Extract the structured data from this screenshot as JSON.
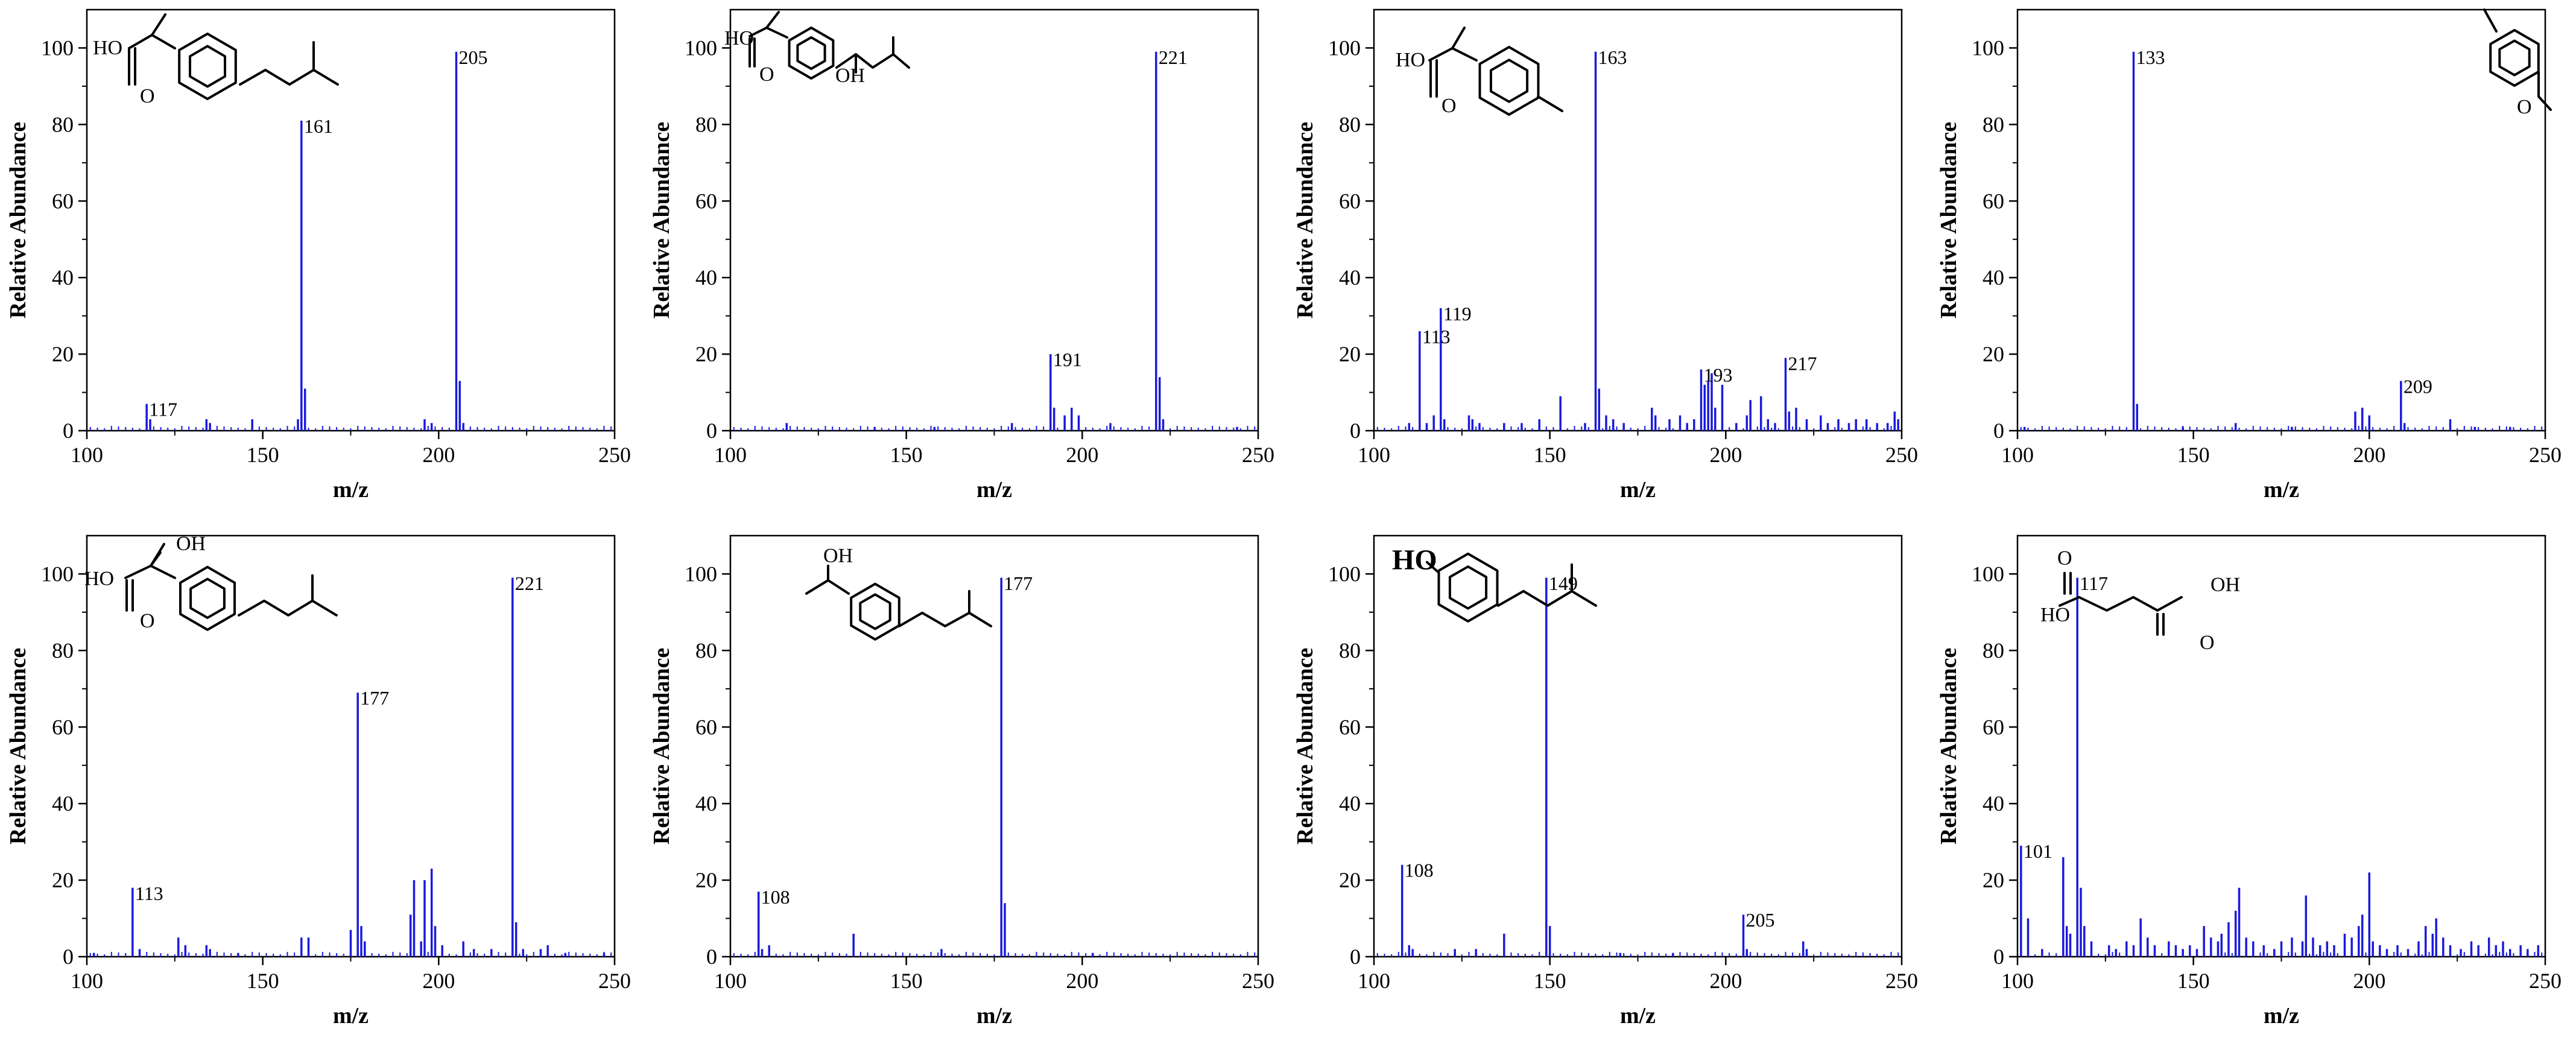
{
  "chart_data": [
    {
      "type": "bar",
      "xlabel": "m/z",
      "ylabel": "Relative Abundance",
      "xlim": [
        100,
        250
      ],
      "ylim": [
        0,
        110
      ],
      "x_ticks": [
        "100",
        "150",
        "200",
        "250"
      ],
      "y_ticks": [
        "0",
        "20",
        "40",
        "60",
        "80",
        "100"
      ],
      "color": "#1a1adc",
      "molecule": "ibuprofen",
      "molecule_texts": [
        "HO",
        "O"
      ],
      "peaks": [
        [
          117,
          7
        ],
        [
          118,
          3
        ],
        [
          134,
          3
        ],
        [
          135,
          2
        ],
        [
          147,
          3
        ],
        [
          160,
          3
        ],
        [
          161,
          81
        ],
        [
          162,
          11
        ],
        [
          196,
          3
        ],
        [
          198,
          2
        ],
        [
          205,
          99
        ],
        [
          206,
          13
        ],
        [
          207,
          2
        ]
      ],
      "labels": [
        {
          "x": 117,
          "y": 7,
          "text": "117"
        },
        {
          "x": 161,
          "y": 81,
          "text": "161"
        },
        {
          "x": 205,
          "y": 99,
          "text": "205"
        }
      ]
    },
    {
      "type": "bar",
      "xlabel": "m/z",
      "ylabel": "Relative Abundance",
      "xlim": [
        100,
        250
      ],
      "ylim": [
        0,
        110
      ],
      "x_ticks": [
        "100",
        "150",
        "200",
        "250"
      ],
      "y_ticks": [
        "0",
        "20",
        "40",
        "60",
        "80",
        "100"
      ],
      "color": "#1a1adc",
      "molecule": "hydroxy_isobutyl_acid",
      "molecule_texts": [
        "HO",
        "O",
        "OH"
      ],
      "peaks": [
        [
          116,
          2
        ],
        [
          141,
          1
        ],
        [
          158,
          1
        ],
        [
          180,
          2
        ],
        [
          191,
          20
        ],
        [
          192,
          6
        ],
        [
          195,
          4
        ],
        [
          197,
          6
        ],
        [
          199,
          4
        ],
        [
          208,
          2
        ],
        [
          221,
          99
        ],
        [
          222,
          14
        ],
        [
          223,
          3
        ],
        [
          244,
          1
        ]
      ],
      "labels": [
        {
          "x": 191,
          "y": 20,
          "text": "191"
        },
        {
          "x": 221,
          "y": 99,
          "text": "221"
        }
      ]
    },
    {
      "type": "bar",
      "xlabel": "m/z",
      "ylabel": "Relative Abundance",
      "xlim": [
        100,
        250
      ],
      "ylim": [
        0,
        110
      ],
      "x_ticks": [
        "100",
        "150",
        "200",
        "250"
      ],
      "y_ticks": [
        "0",
        "20",
        "40",
        "60",
        "80",
        "100"
      ],
      "color": "#1a1adc",
      "molecule": "methylphenyl_propanoic_acid",
      "molecule_texts": [
        "HO",
        "O"
      ],
      "peaks": [
        [
          110,
          2
        ],
        [
          113,
          26
        ],
        [
          115,
          2
        ],
        [
          117,
          4
        ],
        [
          119,
          32
        ],
        [
          120,
          3
        ],
        [
          127,
          4
        ],
        [
          128,
          3
        ],
        [
          130,
          2
        ],
        [
          137,
          2
        ],
        [
          142,
          2
        ],
        [
          147,
          3
        ],
        [
          153,
          9
        ],
        [
          160,
          2
        ],
        [
          163,
          99
        ],
        [
          164,
          11
        ],
        [
          166,
          4
        ],
        [
          168,
          3
        ],
        [
          171,
          2
        ],
        [
          179,
          6
        ],
        [
          180,
          4
        ],
        [
          184,
          3
        ],
        [
          187,
          4
        ],
        [
          189,
          2
        ],
        [
          191,
          3
        ],
        [
          193,
          16
        ],
        [
          194,
          12
        ],
        [
          195,
          13
        ],
        [
          196,
          15
        ],
        [
          197,
          6
        ],
        [
          199,
          12
        ],
        [
          203,
          2
        ],
        [
          206,
          4
        ],
        [
          207,
          8
        ],
        [
          210,
          9
        ],
        [
          212,
          3
        ],
        [
          214,
          2
        ],
        [
          217,
          19
        ],
        [
          218,
          5
        ],
        [
          220,
          6
        ],
        [
          223,
          3
        ],
        [
          227,
          4
        ],
        [
          229,
          2
        ],
        [
          232,
          3
        ],
        [
          235,
          2
        ],
        [
          237,
          3
        ],
        [
          240,
          3
        ],
        [
          243,
          2
        ],
        [
          246,
          2
        ],
        [
          248,
          5
        ],
        [
          249,
          3
        ]
      ],
      "labels": [
        {
          "x": 113,
          "y": 26,
          "text": "113"
        },
        {
          "x": 119,
          "y": 32,
          "text": "119"
        },
        {
          "x": 163,
          "y": 99,
          "text": "163"
        },
        {
          "x": 193,
          "y": 16,
          "text": "193"
        },
        {
          "x": 217,
          "y": 19,
          "text": "217"
        }
      ]
    },
    {
      "type": "bar",
      "xlabel": "m/z",
      "ylabel": "Relative Abundance",
      "xlim": [
        100,
        250
      ],
      "ylim": [
        0,
        110
      ],
      "x_ticks": [
        "100",
        "150",
        "200",
        "250"
      ],
      "y_ticks": [
        "0",
        "20",
        "40",
        "60",
        "80",
        "100"
      ],
      "color": "#1a1adc",
      "molecule": "ethylbenzaldehyde",
      "molecule_texts": [
        "O"
      ],
      "peaks": [
        [
          102,
          1
        ],
        [
          133,
          99
        ],
        [
          134,
          7
        ],
        [
          147,
          1
        ],
        [
          162,
          2
        ],
        [
          178,
          1
        ],
        [
          196,
          5
        ],
        [
          198,
          6
        ],
        [
          200,
          4
        ],
        [
          209,
          13
        ],
        [
          210,
          2
        ],
        [
          223,
          3
        ],
        [
          230,
          1
        ],
        [
          240,
          1
        ]
      ],
      "labels": [
        {
          "x": 133,
          "y": 99,
          "text": "133"
        },
        {
          "x": 209,
          "y": 13,
          "text": "209"
        }
      ]
    },
    {
      "type": "bar",
      "xlabel": "m/z",
      "ylabel": "Relative Abundance",
      "xlim": [
        100,
        250
      ],
      "ylim": [
        0,
        110
      ],
      "x_ticks": [
        "100",
        "150",
        "200",
        "250"
      ],
      "y_ticks": [
        "0",
        "20",
        "40",
        "60",
        "80",
        "100"
      ],
      "color": "#1a1adc",
      "molecule": "hydroxy_ibuprofen",
      "molecule_texts": [
        "HO",
        "O",
        "OH"
      ],
      "peaks": [
        [
          102,
          1
        ],
        [
          113,
          18
        ],
        [
          115,
          2
        ],
        [
          126,
          5
        ],
        [
          128,
          3
        ],
        [
          134,
          3
        ],
        [
          135,
          2
        ],
        [
          143,
          1
        ],
        [
          161,
          5
        ],
        [
          163,
          5
        ],
        [
          175,
          7
        ],
        [
          177,
          69
        ],
        [
          178,
          8
        ],
        [
          179,
          4
        ],
        [
          192,
          11
        ],
        [
          193,
          20
        ],
        [
          195,
          4
        ],
        [
          196,
          20
        ],
        [
          198,
          23
        ],
        [
          199,
          8
        ],
        [
          201,
          3
        ],
        [
          207,
          4
        ],
        [
          210,
          2
        ],
        [
          215,
          2
        ],
        [
          221,
          99
        ],
        [
          222,
          9
        ],
        [
          224,
          2
        ],
        [
          229,
          2
        ],
        [
          231,
          3
        ],
        [
          236,
          1
        ],
        [
          247,
          1
        ]
      ],
      "labels": [
        {
          "x": 113,
          "y": 18,
          "text": "113"
        },
        {
          "x": 177,
          "y": 69,
          "text": "177"
        },
        {
          "x": 221,
          "y": 99,
          "text": "221"
        }
      ]
    },
    {
      "type": "bar",
      "xlabel": "m/z",
      "ylabel": "Relative Abundance",
      "xlim": [
        100,
        250
      ],
      "ylim": [
        0,
        110
      ],
      "x_ticks": [
        "100",
        "150",
        "200",
        "250"
      ],
      "y_ticks": [
        "0",
        "20",
        "40",
        "60",
        "80",
        "100"
      ],
      "color": "#1a1adc",
      "molecule": "isobutylphenyl_ethanol",
      "molecule_texts": [
        "OH"
      ],
      "peaks": [
        [
          108,
          17
        ],
        [
          109,
          2
        ],
        [
          111,
          3
        ],
        [
          135,
          6
        ],
        [
          160,
          2
        ],
        [
          177,
          99
        ],
        [
          178,
          14
        ],
        [
          203,
          1
        ]
      ],
      "labels": [
        {
          "x": 108,
          "y": 17,
          "text": "108"
        },
        {
          "x": 177,
          "y": 99,
          "text": "177"
        }
      ]
    },
    {
      "type": "bar",
      "xlabel": "m/z",
      "ylabel": "Relative Abundance",
      "xlim": [
        100,
        250
      ],
      "ylim": [
        0,
        110
      ],
      "x_ticks": [
        "100",
        "150",
        "200",
        "250"
      ],
      "y_ticks": [
        "0",
        "20",
        "40",
        "60",
        "80",
        "100"
      ],
      "color": "#1a1adc",
      "molecule": "isobutylphenol",
      "molecule_texts": [
        "HO"
      ],
      "peaks": [
        [
          108,
          24
        ],
        [
          110,
          3
        ],
        [
          111,
          2
        ],
        [
          123,
          2
        ],
        [
          129,
          2
        ],
        [
          137,
          6
        ],
        [
          149,
          99
        ],
        [
          150,
          8
        ],
        [
          170,
          1
        ],
        [
          185,
          1
        ],
        [
          205,
          11
        ],
        [
          206,
          2
        ],
        [
          222,
          4
        ],
        [
          223,
          2
        ]
      ],
      "labels": [
        {
          "x": 108,
          "y": 24,
          "text": "108"
        },
        {
          "x": 149,
          "y": 99,
          "text": "149"
        },
        {
          "x": 205,
          "y": 11,
          "text": "205"
        }
      ]
    },
    {
      "type": "bar",
      "xlabel": "m/z",
      "ylabel": "Relative Abundance",
      "xlim": [
        100,
        250
      ],
      "ylim": [
        0,
        110
      ],
      "x_ticks": [
        "100",
        "150",
        "200",
        "250"
      ],
      "y_ticks": [
        "0",
        "20",
        "40",
        "60",
        "80",
        "100"
      ],
      "color": "#1a1adc",
      "molecule": "succinic_acid",
      "molecule_texts": [
        "O",
        "HO",
        "OH",
        "O"
      ],
      "peaks": [
        [
          101,
          29
        ],
        [
          103,
          10
        ],
        [
          107,
          2
        ],
        [
          113,
          26
        ],
        [
          114,
          8
        ],
        [
          115,
          6
        ],
        [
          117,
          99
        ],
        [
          118,
          18
        ],
        [
          119,
          8
        ],
        [
          121,
          4
        ],
        [
          126,
          3
        ],
        [
          128,
          2
        ],
        [
          131,
          4
        ],
        [
          133,
          3
        ],
        [
          135,
          10
        ],
        [
          137,
          5
        ],
        [
          139,
          3
        ],
        [
          143,
          4
        ],
        [
          145,
          3
        ],
        [
          147,
          2
        ],
        [
          149,
          3
        ],
        [
          151,
          2
        ],
        [
          153,
          8
        ],
        [
          155,
          5
        ],
        [
          157,
          4
        ],
        [
          158,
          6
        ],
        [
          160,
          9
        ],
        [
          162,
          12
        ],
        [
          163,
          18
        ],
        [
          165,
          5
        ],
        [
          167,
          4
        ],
        [
          170,
          3
        ],
        [
          173,
          2
        ],
        [
          175,
          4
        ],
        [
          178,
          5
        ],
        [
          181,
          4
        ],
        [
          182,
          16
        ],
        [
          184,
          5
        ],
        [
          186,
          3
        ],
        [
          188,
          4
        ],
        [
          190,
          3
        ],
        [
          193,
          6
        ],
        [
          195,
          5
        ],
        [
          197,
          8
        ],
        [
          198,
          11
        ],
        [
          200,
          22
        ],
        [
          201,
          4
        ],
        [
          203,
          3
        ],
        [
          205,
          2
        ],
        [
          208,
          3
        ],
        [
          211,
          2
        ],
        [
          214,
          4
        ],
        [
          216,
          8
        ],
        [
          218,
          6
        ],
        [
          219,
          10
        ],
        [
          221,
          5
        ],
        [
          223,
          3
        ],
        [
          226,
          2
        ],
        [
          229,
          4
        ],
        [
          231,
          3
        ],
        [
          234,
          5
        ],
        [
          236,
          3
        ],
        [
          238,
          4
        ],
        [
          240,
          2
        ],
        [
          243,
          3
        ],
        [
          245,
          2
        ],
        [
          248,
          3
        ]
      ],
      "labels": [
        {
          "x": 101,
          "y": 29,
          "text": "101"
        },
        {
          "x": 117,
          "y": 99,
          "text": "117"
        }
      ]
    }
  ]
}
